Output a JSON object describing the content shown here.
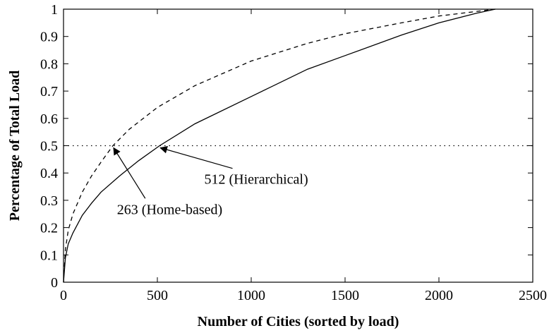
{
  "chart_data": {
    "type": "line",
    "title": "",
    "xlabel": "Number of Cities (sorted by load)",
    "ylabel": "Percentage of Total Load",
    "xlim": [
      0,
      2500
    ],
    "ylim": [
      0,
      1
    ],
    "xticks": [
      0,
      500,
      1000,
      1500,
      2000,
      2500
    ],
    "yticks": [
      0,
      0.1,
      0.2,
      0.3,
      0.4,
      0.5,
      0.6,
      0.7,
      0.8,
      0.9,
      1
    ],
    "grid": false,
    "legend": "none",
    "series": [
      {
        "style": "solid",
        "x": [
          0,
          10,
          25,
          50,
          100,
          150,
          200,
          300,
          400,
          512,
          700,
          1000,
          1300,
          1500,
          1800,
          2000,
          2200,
          2300
        ],
        "y": [
          0,
          0.09,
          0.14,
          0.18,
          0.245,
          0.29,
          0.33,
          0.39,
          0.445,
          0.5,
          0.58,
          0.68,
          0.78,
          0.83,
          0.905,
          0.95,
          0.985,
          1.0
        ]
      },
      {
        "style": "dashed",
        "x": [
          0,
          10,
          25,
          50,
          100,
          150,
          200,
          263,
          350,
          500,
          700,
          1000,
          1300,
          1500,
          1800,
          2000,
          2300
        ],
        "y": [
          0,
          0.12,
          0.19,
          0.25,
          0.33,
          0.39,
          0.44,
          0.5,
          0.56,
          0.64,
          0.72,
          0.81,
          0.875,
          0.91,
          0.95,
          0.975,
          1.0
        ]
      }
    ],
    "reference_line": {
      "y": 0.5,
      "style": "dotted"
    },
    "annotations": [
      {
        "text": "263 (Home-based)",
        "point": [
          263,
          0.5
        ],
        "text_at": [
          285,
          0.25
        ]
      },
      {
        "text": "512 (Hierarchical)",
        "point": [
          512,
          0.5
        ],
        "text_at": [
          750,
          0.36
        ]
      }
    ]
  }
}
